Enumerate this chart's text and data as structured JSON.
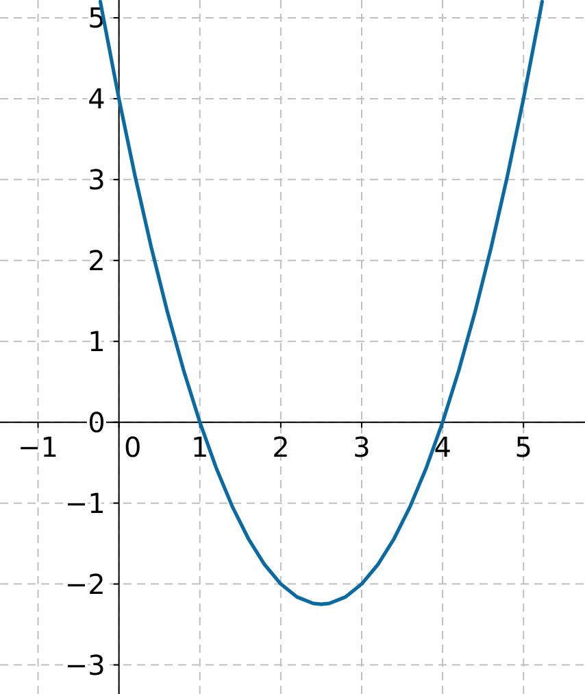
{
  "chart_data": {
    "type": "line",
    "x": [
      -0.23,
      -0.2,
      0,
      0.2,
      0.4,
      0.6,
      0.8,
      1,
      1.2,
      1.4,
      1.6,
      1.8,
      2,
      2.2,
      2.4,
      2.5,
      2.6,
      2.8,
      3,
      3.2,
      3.4,
      3.6,
      3.8,
      4,
      4.2,
      4.4,
      4.6,
      4.8,
      5,
      5.2,
      5.23
    ],
    "series": [
      {
        "color": "#0b6aa2",
        "values": [
          5.2,
          5.04,
          4,
          3.04,
          2.16,
          1.36,
          0.64,
          0,
          -0.56,
          -1.04,
          -1.44,
          -1.76,
          -2,
          -2.16,
          -2.24,
          -2.25,
          -2.24,
          -2.16,
          -2,
          -1.76,
          -1.44,
          -1.04,
          -0.56,
          0,
          0.64,
          1.36,
          2.16,
          3.04,
          4,
          5.04,
          5.2
        ]
      }
    ],
    "xlim": [
      -1.47,
      5.76
    ],
    "ylim": [
      -3.36,
      5.22
    ],
    "xticks": [
      {
        "value": -1,
        "label": "−1"
      },
      0,
      1,
      2,
      3,
      4,
      5
    ],
    "yticks": [
      {
        "value": -3,
        "label": "−3"
      },
      {
        "value": -2,
        "label": "−2"
      },
      {
        "value": -1,
        "label": "−1"
      },
      0,
      1,
      2,
      3,
      4,
      5
    ],
    "grid": true,
    "marker": "none",
    "line_style": "solid"
  }
}
